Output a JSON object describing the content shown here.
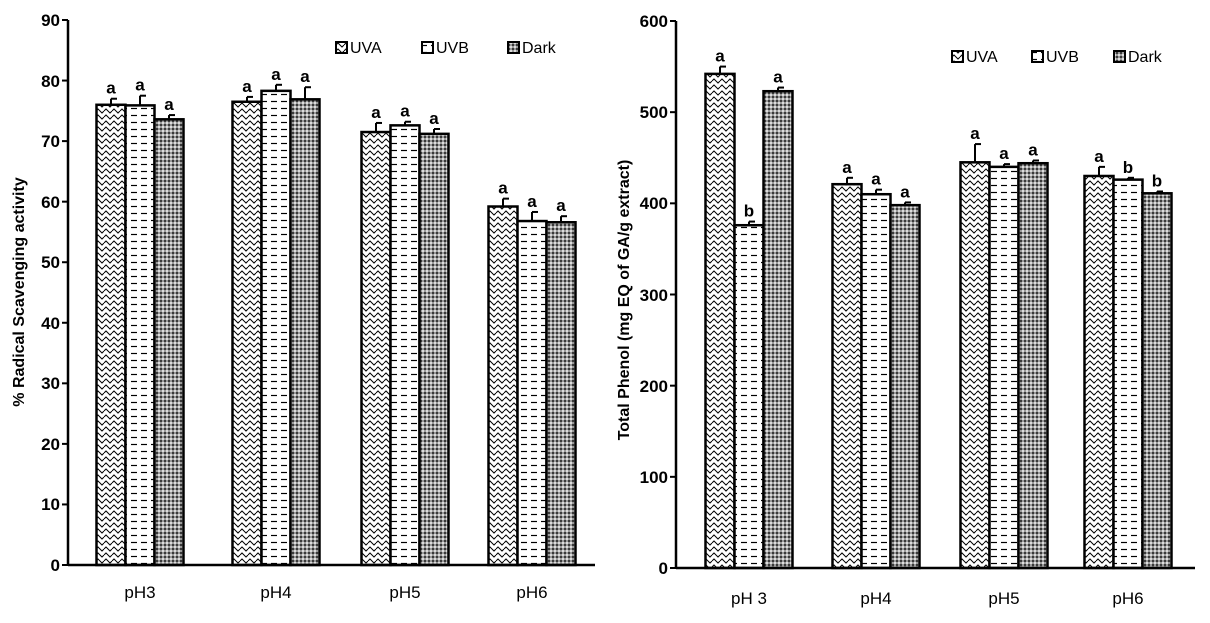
{
  "chart_data": [
    {
      "type": "bar",
      "title": "",
      "xlabel": "",
      "ylabel": "% Radical Scavenging activity",
      "ylim": [
        0,
        90
      ],
      "yticks": [
        "0",
        "10",
        "20",
        "30",
        "40",
        "50",
        "60",
        "70",
        "80",
        "90"
      ],
      "categories": [
        "pH3",
        "pH4",
        "pH5",
        "pH6"
      ],
      "series": [
        {
          "name": "UVA",
          "pattern": "wave",
          "values": [
            76,
            76.5,
            71.5,
            59.2
          ],
          "errors": [
            1.0,
            0.8,
            1.5,
            1.3
          ],
          "labels": [
            "a",
            "a",
            "a",
            "a"
          ]
        },
        {
          "name": "UVB",
          "pattern": "dash",
          "values": [
            75.9,
            78.3,
            72.6,
            56.8
          ],
          "errors": [
            1.6,
            1.0,
            0.6,
            1.5
          ],
          "labels": [
            "a",
            "a",
            "a",
            "a"
          ]
        },
        {
          "name": "Dark",
          "pattern": "dots",
          "values": [
            73.6,
            76.9,
            71.2,
            56.6
          ],
          "errors": [
            0.7,
            2.0,
            0.8,
            1.0
          ],
          "labels": [
            "a",
            "a",
            "a",
            "a"
          ]
        }
      ],
      "legend_position": "top-right"
    },
    {
      "type": "bar",
      "title": "",
      "xlabel": "",
      "ylabel": "Total Phenol (mg EQ of GA/g extract)",
      "ylim": [
        0,
        600
      ],
      "yticks": [
        "0",
        "100",
        "200",
        "300",
        "400",
        "500",
        "600"
      ],
      "categories": [
        "pH 3",
        "pH4",
        "pH5",
        "pH6"
      ],
      "series": [
        {
          "name": "UVA",
          "pattern": "wave",
          "values": [
            542,
            421,
            445,
            430
          ],
          "errors": [
            8,
            7,
            20,
            10
          ],
          "labels": [
            "a",
            "a",
            "a",
            "a"
          ]
        },
        {
          "name": "UVB",
          "pattern": "dash",
          "values": [
            376,
            410,
            440,
            426
          ],
          "errors": [
            4,
            5,
            3,
            2
          ],
          "labels": [
            "b",
            "a",
            "a",
            "b"
          ]
        },
        {
          "name": "Dark",
          "pattern": "dots",
          "values": [
            523,
            398,
            444,
            411
          ],
          "errors": [
            4,
            3,
            3,
            2
          ],
          "labels": [
            "a",
            "a",
            "a",
            "b"
          ]
        }
      ],
      "legend_position": "top-right"
    }
  ]
}
